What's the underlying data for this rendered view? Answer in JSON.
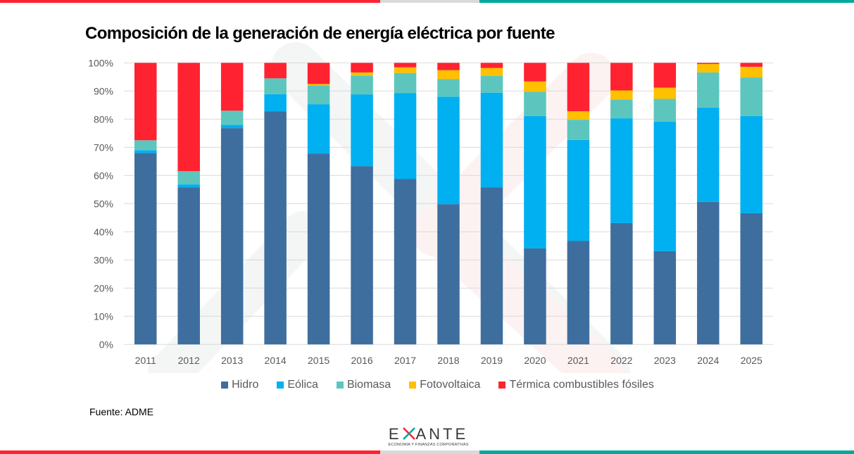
{
  "page": {
    "title": "Composición de la generación de energía eléctrica por fuente",
    "source": "Fuente: ADME",
    "logo": {
      "name": "EXANTE",
      "tagline": "ECONOMÍA Y FINANZAS CORPORATIVAS"
    },
    "brand_colors": {
      "red": "#ff2230",
      "gray": "#d9d9d9",
      "teal": "#00a99d"
    }
  },
  "chart_data": {
    "type": "bar",
    "stacked": true,
    "normalized": true,
    "title": "Composición de la generación de energía eléctrica por fuente",
    "xlabel": "",
    "ylabel": "",
    "ylim": [
      0,
      100
    ],
    "y_ticks": [
      "0%",
      "10%",
      "20%",
      "30%",
      "40%",
      "50%",
      "60%",
      "70%",
      "80%",
      "90%",
      "100%"
    ],
    "grid": true,
    "legend_position": "bottom",
    "categories": [
      "2011",
      "2012",
      "2013",
      "2014",
      "2015",
      "2016",
      "2017",
      "2018",
      "2019",
      "2020",
      "2021",
      "2022",
      "2023",
      "2024",
      "2025"
    ],
    "series": [
      {
        "name": "Hidro",
        "color": "#3e6e9e",
        "values": [
          68.0,
          55.8,
          76.8,
          82.8,
          67.8,
          63.3,
          58.8,
          49.8,
          55.8,
          34.1,
          36.8,
          43.1,
          33.1,
          50.6,
          46.6
        ]
      },
      {
        "name": "Eólica",
        "color": "#00b0f0",
        "values": [
          1.0,
          1.0,
          1.2,
          6.1,
          17.5,
          25.5,
          30.4,
          38.2,
          33.6,
          47.0,
          35.8,
          37.2,
          46.0,
          33.5,
          34.5
        ]
      },
      {
        "name": "Biomasa",
        "color": "#5cc6be",
        "values": [
          3.5,
          4.7,
          5.0,
          5.6,
          6.7,
          6.7,
          7.2,
          6.2,
          6.0,
          8.6,
          7.2,
          6.7,
          8.1,
          12.5,
          13.7
        ]
      },
      {
        "name": "Fotovoltaica",
        "color": "#ffc000",
        "values": [
          0.0,
          0.0,
          0.0,
          0.0,
          0.5,
          1.1,
          2.0,
          3.2,
          2.8,
          3.7,
          3.0,
          3.2,
          4.0,
          3.0,
          3.8
        ]
      },
      {
        "name": "Térmica combustibles fósiles",
        "color": "#ff2230",
        "values": [
          27.5,
          38.5,
          17.0,
          5.5,
          7.5,
          3.4,
          1.6,
          2.6,
          1.8,
          6.6,
          17.2,
          9.8,
          8.8,
          0.4,
          1.4
        ]
      }
    ]
  }
}
